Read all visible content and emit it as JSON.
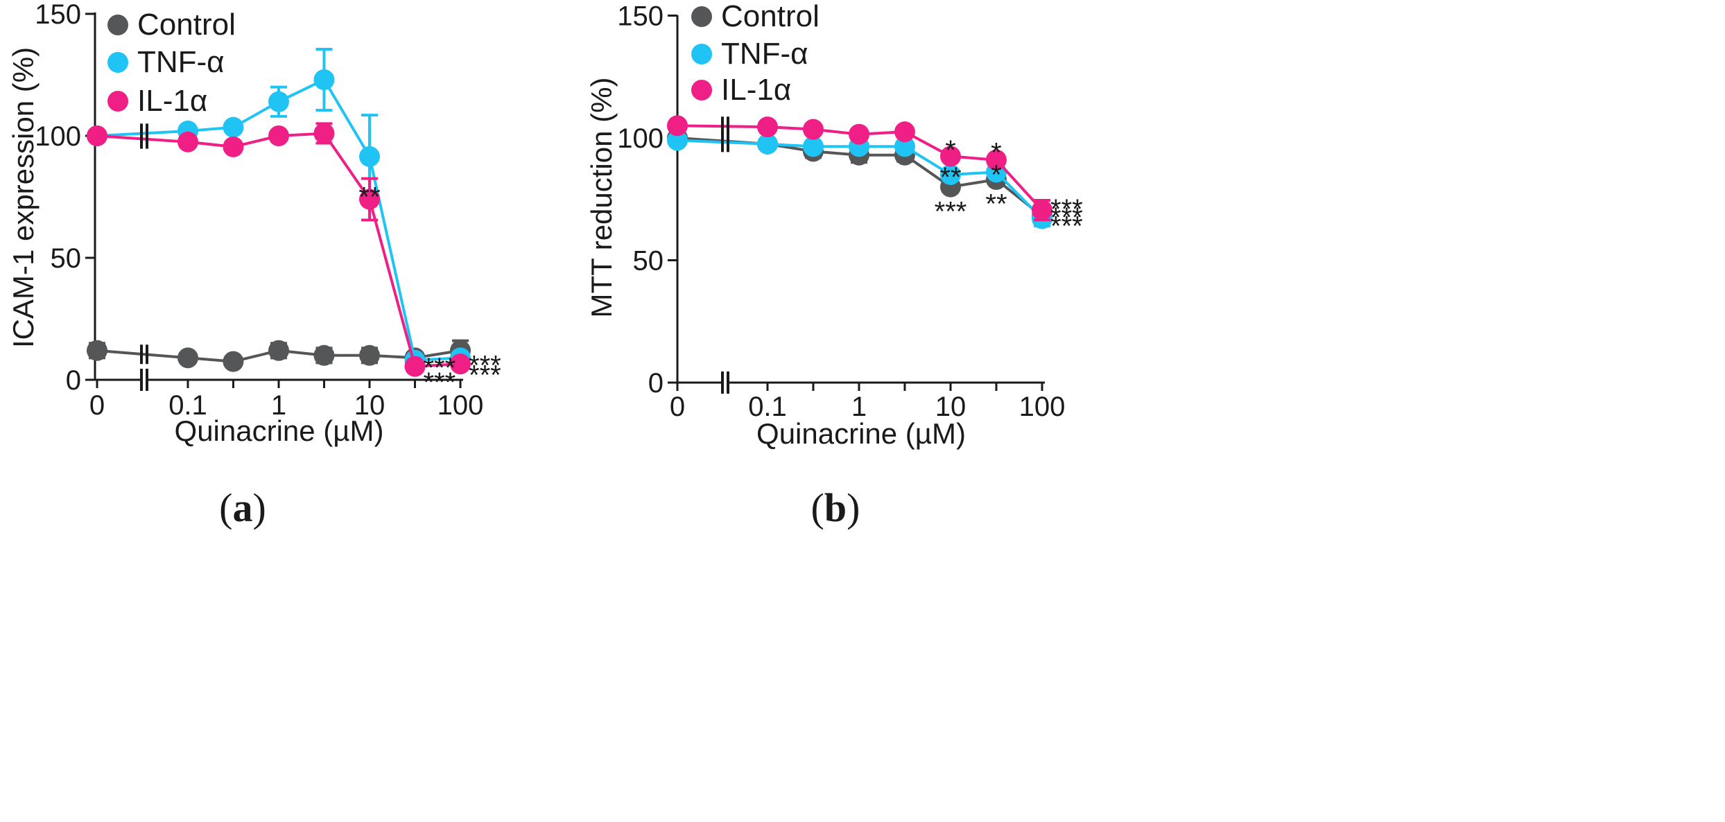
{
  "chart_data": [
    {
      "type": "line",
      "panel_label": "a",
      "ylabel": "ICAM-1 expression (%)",
      "xlabel": "Quinacrine (µM)",
      "ylim": [
        0,
        150
      ],
      "yticks": [
        0,
        50,
        100,
        150
      ],
      "x_scale": "log10 with axis break; 0 plotted before break",
      "x": [
        0,
        0.1,
        0.316,
        1,
        3.16,
        10,
        31.6,
        100
      ],
      "xticks": [
        {
          "value": 0,
          "label": "0"
        },
        {
          "value": 0.1,
          "label": "0.1"
        },
        {
          "value": 1,
          "label": "1"
        },
        {
          "value": 10,
          "label": "10"
        },
        {
          "value": 100,
          "label": "100"
        }
      ],
      "legend": [
        "Control",
        "TNF-α",
        "IL-1α"
      ],
      "legend_position": "top-left",
      "series": [
        {
          "name": "Control",
          "color": "#545658",
          "values": [
            12,
            9,
            7.5,
            12,
            10,
            10,
            9,
            12
          ],
          "errors": [
            3,
            2,
            1.5,
            3,
            3,
            3,
            2,
            4
          ]
        },
        {
          "name": "TNF-α",
          "color": "#20c4f4",
          "values": [
            100,
            102,
            103.5,
            114,
            123,
            91.5,
            8,
            9
          ],
          "errors": [
            0,
            2,
            2,
            6,
            12.5,
            17,
            1.5,
            1.5
          ]
        },
        {
          "name": "IL-1α",
          "color": "#ef1f86",
          "values": [
            100,
            97.5,
            95.5,
            100,
            101,
            74,
            5.5,
            6.5
          ],
          "errors": [
            0,
            2,
            2,
            2,
            4,
            8.5,
            1,
            1
          ]
        }
      ],
      "annotations": [
        {
          "text": "**",
          "x": 10,
          "y": 78
        },
        {
          "text": "***",
          "x": 31.6,
          "y": 8
        },
        {
          "text": "***",
          "x": 31.6,
          "y": 2
        },
        {
          "text": "***",
          "x": 100,
          "y": 9
        },
        {
          "text": "***",
          "x": 100,
          "y": 5
        }
      ]
    },
    {
      "type": "line",
      "panel_label": "b",
      "ylabel": "MTT reduction (%)",
      "xlabel": "Quinacrine (µM)",
      "ylim": [
        0,
        150
      ],
      "yticks": [
        0,
        50,
        100,
        150
      ],
      "x_scale": "log10 with axis break; 0 plotted before break",
      "x": [
        0,
        0.1,
        0.316,
        1,
        3.16,
        10,
        31.6,
        100
      ],
      "xticks": [
        {
          "value": 0,
          "label": "0"
        },
        {
          "value": 0.1,
          "label": "0.1"
        },
        {
          "value": 1,
          "label": "1"
        },
        {
          "value": 10,
          "label": "10"
        },
        {
          "value": 100,
          "label": "100"
        }
      ],
      "legend": [
        "Control",
        "TNF-α",
        "IL-1α"
      ],
      "legend_position": "top-left",
      "series": [
        {
          "name": "Control",
          "color": "#545658",
          "values": [
            100,
            97.5,
            94.5,
            93,
            93,
            80,
            83,
            68
          ],
          "errors": [
            1.5,
            2,
            2.5,
            3,
            2.5,
            2,
            2,
            2.5
          ]
        },
        {
          "name": "TNF-α",
          "color": "#20c4f4",
          "values": [
            99,
            97.5,
            96.5,
            96.5,
            96.5,
            85,
            86,
            67
          ],
          "errors": [
            1.5,
            1.5,
            2,
            2,
            2,
            2,
            2,
            3
          ]
        },
        {
          "name": "IL-1α",
          "color": "#ef1f86",
          "values": [
            105,
            104.5,
            103.5,
            101.5,
            102.5,
            92.5,
            91,
            70.5
          ],
          "errors": [
            1.5,
            1.5,
            1.5,
            1.5,
            1.5,
            2,
            2,
            4
          ]
        }
      ],
      "annotations": [
        {
          "text": "*",
          "x": 10,
          "y": 98
        },
        {
          "text": "**",
          "x": 10,
          "y": 87
        },
        {
          "text": "***",
          "x": 10,
          "y": 73
        },
        {
          "text": "*",
          "x": 31.6,
          "y": 97
        },
        {
          "text": "*",
          "x": 31.6,
          "y": 88
        },
        {
          "text": "**",
          "x": 31.6,
          "y": 76
        },
        {
          "text": "***",
          "x": 100,
          "y": 74
        },
        {
          "text": "***",
          "x": 100,
          "y": 70.5
        },
        {
          "text": "***",
          "x": 100,
          "y": 67
        }
      ]
    }
  ]
}
